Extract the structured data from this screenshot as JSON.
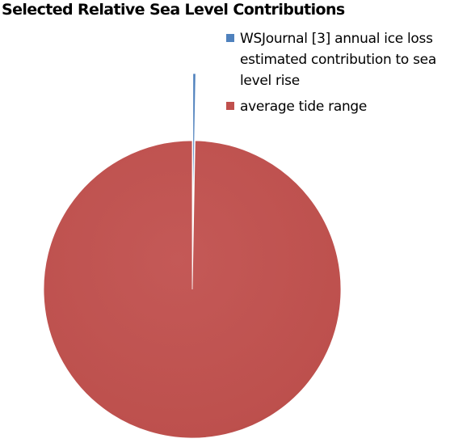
{
  "chart_data": {
    "type": "pie",
    "title": "Selected Relative Sea Level Contributions",
    "legend_position": "top-right",
    "slices": [
      {
        "label": "WSJournal [3] annual ice loss estimated contribution to sea level rise",
        "value": 0.003,
        "color": "#4f81bd"
      },
      {
        "label": "average tide range",
        "value": 0.997,
        "color": "#c0504d"
      }
    ],
    "exploded_slice": 0
  }
}
